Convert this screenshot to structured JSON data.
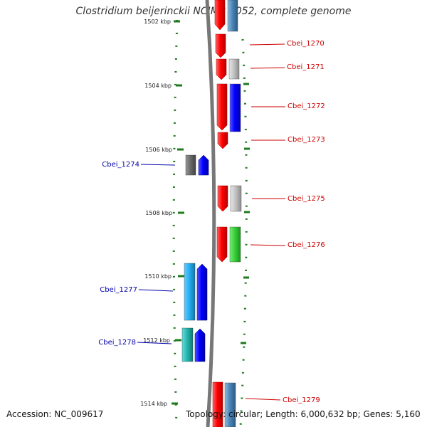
{
  "title": "Clostridium beijerinckii NCIMB 8052, complete genome",
  "footer": {
    "accession": "Accession: NC_009617",
    "topology": "Topology: circular; Length: 6,000,632 bp; Genes: 5,160"
  },
  "scale_labels": [
    "1502 kbp",
    "1504 kbp",
    "1506 kbp",
    "1508 kbp",
    "1510 kbp",
    "1512 kbp",
    "1514 kbp"
  ],
  "gene_labels_right": [
    "Cbei_1270",
    "Cbei_1271",
    "Cbei_1272",
    "Cbei_1273",
    "Cbei_1275",
    "Cbei_1276",
    "Cbei_1279"
  ],
  "gene_labels_left": [
    "Cbei_1274",
    "Cbei_1277",
    "Cbei_1278"
  ],
  "colors": {
    "forward_cds": "#ff0000",
    "reverse_cds": "#0000ff",
    "label_forward": "#cc0000",
    "label_reverse": "#0000aa",
    "backbone": "#777777",
    "ticks": "#1e7a1e",
    "gray_feature": "#c0c0c0",
    "dark_gray_feature": "#666666",
    "steel_blue_feature": "#4682b4",
    "green_feature": "#33cc33",
    "cyan_feature": "#22aaee",
    "teal_feature": "#20b2aa"
  }
}
